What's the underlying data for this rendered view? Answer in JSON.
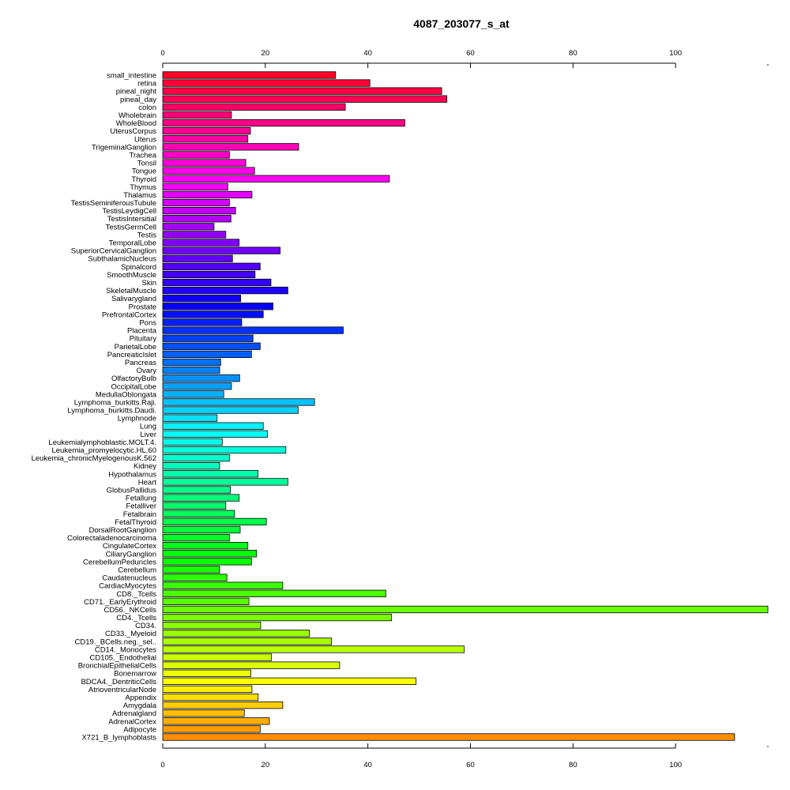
{
  "chart_data": {
    "type": "bar",
    "orientation": "horizontal",
    "title": "4087_203077_s_at",
    "xlabel": "",
    "ylabel": "",
    "xlim": [
      0,
      118
    ],
    "xticks": [
      0,
      20,
      40,
      60,
      80,
      100
    ],
    "grid": false,
    "legend": "none",
    "categories": [
      "small_intestine",
      "retina",
      "pineal_night",
      "pineal_day",
      "colon",
      "Wholebrain",
      "WholeBlood",
      "UterusCorpus",
      "Uterus",
      "TrigeminalGanglion",
      "Trachea",
      "Tonsil",
      "Tongue",
      "Thyroid",
      "Thymus",
      "Thalamus",
      "TestisSeminiferousTubule",
      "TestisLeydigCell",
      "TestisIntersitial",
      "TestisGermCell",
      "Testis",
      "TemporalLobe",
      "SuperiorCervicalGanglion",
      "SubthalamicNucleus",
      "Spinalcord",
      "SmoothMuscle",
      "Skin",
      "SkeletalMuscle",
      "Salivarygland",
      "Prostate",
      "PrefrontalCortex",
      "Pons",
      "Placenta",
      "Pituitary",
      "ParietalLobe",
      "PancreaticIslet",
      "Pancreas",
      "Ovary",
      "OlfactoryBulb",
      "OccipitalLobe",
      "MedullaOblongata",
      "Lymphoma_burkitts.Raji.",
      "Lymphoma_burkitts.Daudi.",
      "Lymphnode",
      "Lung",
      "Liver",
      "Leukemialymphoblastic.MOLT.4.",
      "Leukemia_promyelocytic.HL.60",
      "Leukemia_chronicMyelogenousK.562",
      "Kidney",
      "Hypothalamus",
      "Heart",
      "GlobusPallidus",
      "Fetallung",
      "Fetalliver",
      "Fetalbrain",
      "FetalThyroid",
      "DorsalRootGanglion",
      "Colorectaladenocarcinoma",
      "CingulateCortex",
      "CiliaryGanglion",
      "CerebellumPeduncles",
      "Cerebellum",
      "Caudatenucleus",
      "CardiacMyocytes",
      "CD8._Tcells",
      "CD71._EarlyErythroid",
      "CD56._NKCells",
      "CD4._Tcells",
      "CD34.",
      "CD33._Myeloid",
      "CD19._BCells.neg._sel..",
      "CD14._Monocytes",
      "CD105._Endothelial",
      "BronchialEpithelialCells",
      "Bonemarrow",
      "BDCA4._DentriticCells",
      "AtrioventricularNode",
      "Appendix",
      "Amygdala",
      "Adrenalgland",
      "AdrenalCortex",
      "Adipocyte",
      "X721_B_lymphoblasts"
    ],
    "values": [
      33.7,
      40.4,
      54.4,
      55.4,
      35.6,
      13.4,
      47.2,
      17.1,
      16.6,
      26.5,
      13.0,
      16.2,
      17.9,
      44.2,
      12.7,
      17.4,
      13.0,
      14.2,
      13.3,
      10.0,
      12.3,
      14.9,
      22.9,
      13.6,
      19.0,
      18.0,
      21.1,
      24.4,
      15.2,
      21.5,
      19.6,
      15.4,
      35.2,
      17.6,
      19.0,
      17.3,
      11.3,
      11.1,
      15.0,
      13.4,
      11.9,
      29.6,
      26.4,
      10.6,
      19.6,
      20.4,
      11.6,
      24.0,
      13.0,
      11.1,
      18.6,
      24.4,
      13.2,
      14.9,
      12.3,
      14.0,
      20.2,
      15.1,
      13.0,
      16.6,
      18.3,
      17.3,
      11.1,
      12.5,
      23.4,
      43.5,
      16.8,
      118.0,
      44.6,
      19.1,
      28.6,
      32.9,
      58.8,
      21.2,
      34.5,
      17.2,
      49.4,
      17.4,
      18.6,
      23.4,
      15.9,
      20.8,
      19.0,
      111.5
    ],
    "colors": [
      "#ff0026",
      "#ff0036",
      "#ff0046",
      "#ff0056",
      "#ff0066",
      "#ff0077",
      "#ff0087",
      "#ff0097",
      "#ff00a7",
      "#ff00b7",
      "#ff00c8",
      "#ff00d8",
      "#ff00e8",
      "#ff00f8",
      "#f400ff",
      "#e400ff",
      "#d300ff",
      "#c300ff",
      "#b300ff",
      "#a300ff",
      "#9300ff",
      "#8200ff",
      "#7200ff",
      "#6200ff",
      "#5200ff",
      "#4200ff",
      "#3100ff",
      "#2100ff",
      "#1100ff",
      "#0100ff",
      "#000fff",
      "#0020ff",
      "#0030ff",
      "#0040ff",
      "#0050ff",
      "#0060ff",
      "#0071ff",
      "#0081ff",
      "#0091ff",
      "#00a1ff",
      "#00b1ff",
      "#00c2ff",
      "#00d2ff",
      "#00e2ff",
      "#00f2ff",
      "#00fffb",
      "#00ffeb",
      "#00ffdb",
      "#00ffcb",
      "#00ffbb",
      "#00ffaa",
      "#00ff9a",
      "#00ff8a",
      "#00ff7a",
      "#00ff6a",
      "#00ff59",
      "#00ff49",
      "#00ff39",
      "#00ff29",
      "#00ff19",
      "#00ff08",
      "#08ff00",
      "#18ff00",
      "#28ff00",
      "#39ff00",
      "#49ff00",
      "#59ff00",
      "#69ff00",
      "#79ff00",
      "#8aff00",
      "#9aff00",
      "#aaff00",
      "#baff00",
      "#caff00",
      "#dbff00",
      "#ebff00",
      "#fbff00",
      "#ffee00",
      "#ffde00",
      "#ffce00",
      "#ffbe00",
      "#ffae00",
      "#ff9d00",
      "#ff8d00"
    ]
  }
}
